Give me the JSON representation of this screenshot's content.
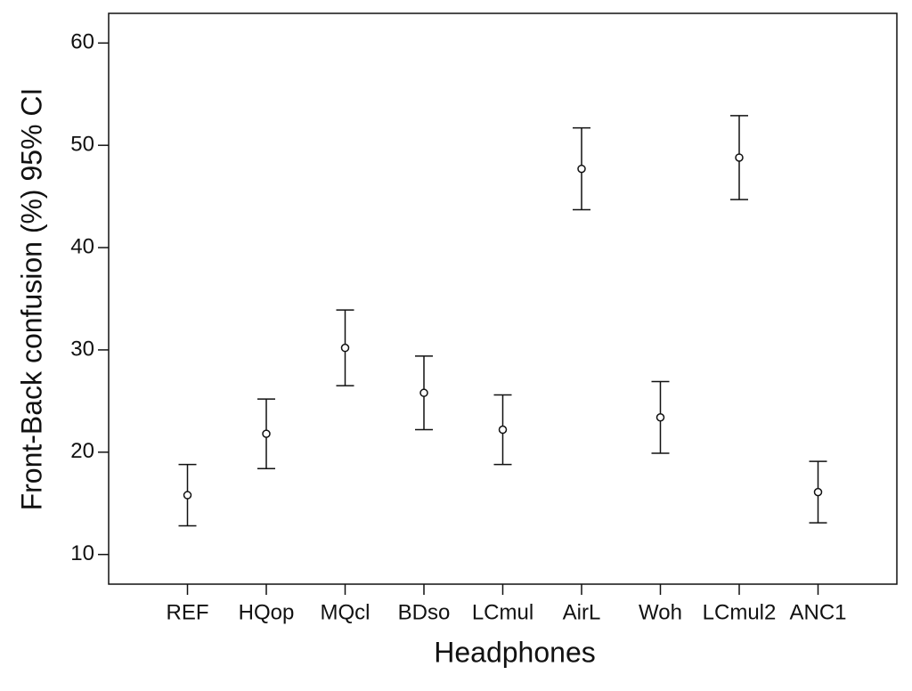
{
  "chart_data": {
    "type": "errorbar",
    "x_label": "Headphones",
    "y_label": "Front-Back confusion (%) 95% CI",
    "categories": [
      "REF",
      "HQop",
      "MQcl",
      "BDso",
      "LCmul",
      "AirL",
      "Woh",
      "LCmul2",
      "ANC1"
    ],
    "values": [
      15.8,
      21.8,
      30.2,
      25.8,
      22.2,
      47.7,
      23.4,
      48.8,
      16.1
    ],
    "errors": [
      3.0,
      3.4,
      3.7,
      3.6,
      3.4,
      4.0,
      3.5,
      4.1,
      3.0
    ],
    "color": "#111111",
    "ylim": [
      7.1,
      62.9
    ],
    "yticks": [
      10,
      20,
      30,
      40,
      50,
      60
    ],
    "grid": false
  }
}
